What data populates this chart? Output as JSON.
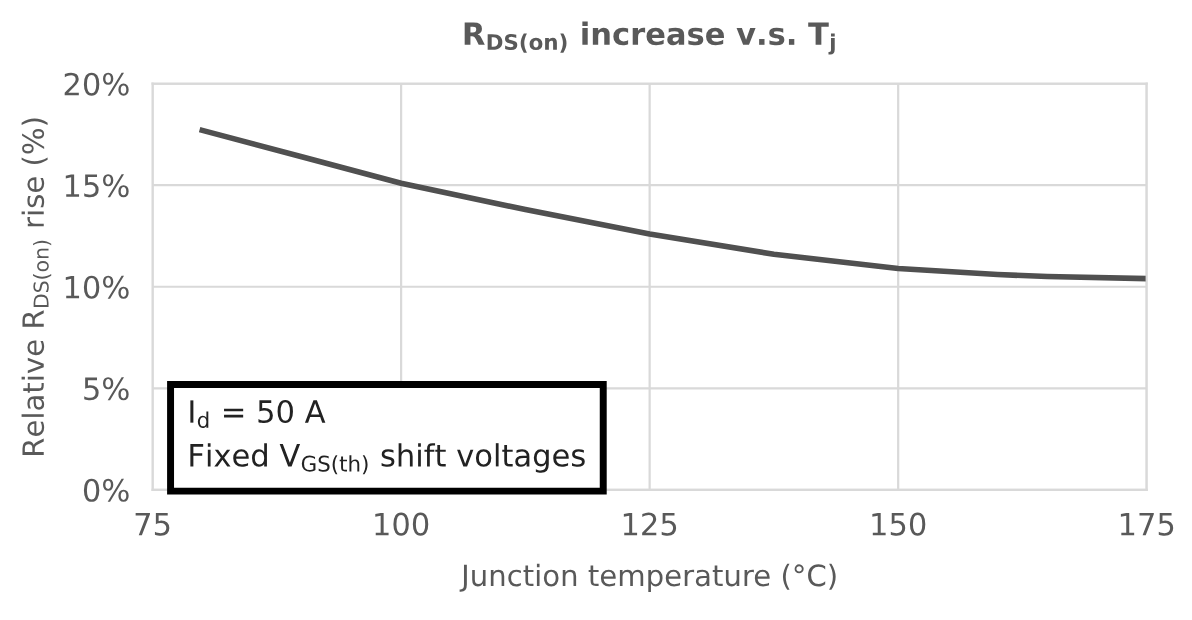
{
  "chart_data": {
    "type": "line",
    "title": "R$_{DS(on)}$ increase v.s. T$_{j}$",
    "xlabel": "Junction temperature (°C)",
    "ylabel": "Relative R$_{DS(on)}$ rise (%)",
    "x": [
      80,
      90,
      100,
      112.5,
      125,
      137.5,
      150,
      160,
      165,
      175
    ],
    "series": [
      {
        "color": "#505050",
        "values": [
          17.7,
          16.4,
          15.1,
          13.8,
          12.6,
          11.6,
          10.9,
          10.6,
          10.5,
          10.4
        ]
      }
    ],
    "xlim": [
      75,
      175
    ],
    "xticks": [
      75,
      100,
      125,
      150,
      175
    ],
    "ylim": [
      0,
      20
    ],
    "yticks": [
      {
        "value": 0,
        "label": "0%"
      },
      {
        "value": 5,
        "label": "5%"
      },
      {
        "value": 10,
        "label": "10%"
      },
      {
        "value": 15,
        "label": "15%"
      },
      {
        "value": 20,
        "label": "20%"
      }
    ],
    "grid": true,
    "annotations": [
      "I$_{d}$ = 50 A\nFixed V$_{GS(th)}$ shift voltages"
    ]
  }
}
